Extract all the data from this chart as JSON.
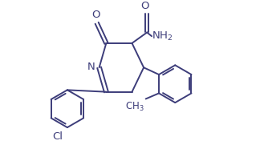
{
  "background": "#ffffff",
  "line_color": "#3d3d7a",
  "text_color": "#3d3d7a",
  "line_width": 1.4,
  "font_size": 9.5,
  "figsize": [
    3.29,
    1.96
  ],
  "dpi": 100,
  "xlim": [
    -1.2,
    2.8
  ],
  "ylim": [
    -1.6,
    1.5
  ]
}
